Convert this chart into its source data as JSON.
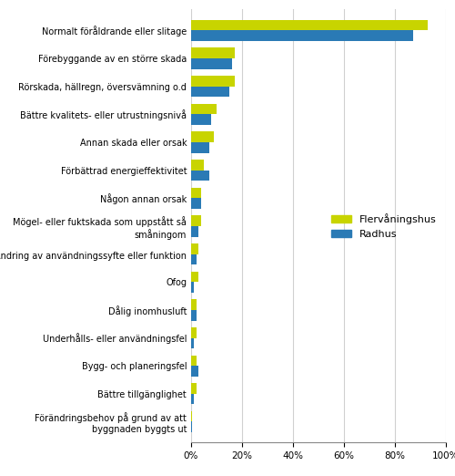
{
  "categories": [
    "Förändringsbehov på grund av att\nbyggnaden byggts ut",
    "Bättre tillgänglighet",
    "Bygg- och planeringsfel",
    "Underhålls- eller användningsfel",
    "Dålig inomhusluft",
    "Ofog",
    "Ändring av användningssyfte eller funktion",
    "Mögel- eller fuktskada som uppstått så\nsmåningom",
    "Någon annan orsak",
    "Förbättrad energieffektivitet",
    "Annan skada eller orsak",
    "Bättre kvalitets- eller utrustningsnivå",
    "Rörskada, hällregn, översvämning o.d",
    "Förebyggande av en större skada",
    "Normalt föråldrande eller slitage"
  ],
  "flervåningshus": [
    0.5,
    2,
    2,
    2,
    2,
    3,
    3,
    4,
    4,
    5,
    9,
    10,
    17,
    17,
    93
  ],
  "radhus": [
    0.5,
    1,
    3,
    1,
    2,
    1,
    2,
    3,
    4,
    7,
    7,
    8,
    15,
    16,
    87
  ],
  "color_flervåningshus": "#c8d400",
  "color_radhus": "#2a7ab5",
  "legend_labels": [
    "Flervåningshus",
    "Radhus"
  ],
  "xlim": [
    0,
    100
  ],
  "xticks": [
    0,
    20,
    40,
    60,
    80,
    100
  ],
  "xticklabels": [
    "0%",
    "20%",
    "40%",
    "60%",
    "80%",
    "100%"
  ],
  "background_color": "#ffffff",
  "grid_color": "#d0d0d0",
  "bar_height": 0.38,
  "figsize": [
    5.0,
    5.22
  ],
  "dpi": 100,
  "label_fontsize": 7.0,
  "tick_fontsize": 7.5,
  "legend_fontsize": 8.0
}
